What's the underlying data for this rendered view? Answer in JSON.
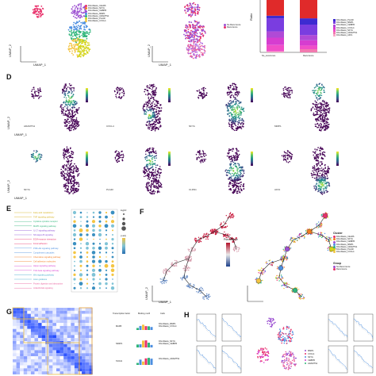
{
  "panels": {
    "D": "D",
    "E": "E",
    "F": "F",
    "G": "G",
    "H": "H"
  },
  "axes": {
    "umap1": "UMAP_1",
    "umap2": "UMAP_2"
  },
  "top_left_legend": [
    {
      "label": "Fibroblasts_CELR6",
      "color": "#e8306a"
    },
    {
      "label": "Fibroblasts_NFYA",
      "color": "#f27a1f"
    },
    {
      "label": "Fibroblasts_CEBPB",
      "color": "#9b4fd1"
    },
    {
      "label": "Fibroblasts_MMP1",
      "color": "#4c8fe0"
    },
    {
      "label": "Fibroblasts_ADAMTS1",
      "color": "#2fb57a"
    },
    {
      "label": "Fibroblasts_PLA4F",
      "color": "#d4d418"
    },
    {
      "label": "Fibroblasts_CXCL4",
      "color": "#f4c542"
    }
  ],
  "top_mid_legend": [
    {
      "label": "No Recurrence",
      "color": "#9b4fd1"
    },
    {
      "label": "Recurrence",
      "color": "#e8306a"
    }
  ],
  "top_right_legend": [
    {
      "label": "Fibroblasts_PLA4F",
      "color": "#3d2bd1"
    },
    {
      "label": "Fibroblasts_MMP1",
      "color": "#7a3de0"
    },
    {
      "label": "Fibroblasts_CEBPB",
      "color": "#b04ad6"
    },
    {
      "label": "Fibroblasts_CXCL4",
      "color": "#d63dd0"
    },
    {
      "label": "Fibroblasts_NFYA",
      "color": "#f04ec8"
    },
    {
      "label": "Fibroblasts_ADAMTS1",
      "color": "#f27ab0"
    },
    {
      "label": "Fibroblasts_AFF1",
      "color": "#f7a8c8"
    }
  ],
  "bar_chart_ylabel": "Ratio",
  "bar_chart_xlabels": [
    "No_recurrence",
    "Recurrence"
  ],
  "genes_row1": [
    "ADAMTS1",
    "CXCL4",
    "NFYA",
    "MMP1"
  ],
  "genes_row2": [
    "NFYA",
    "PLA4F",
    "CLDN1",
    "AFF1"
  ],
  "cbar_label": "Exp",
  "pseudotime_label": "Pseudotime",
  "cluster_title": "Cluster",
  "cluster_legend": [
    {
      "label": "Fibroblasts_CELR6",
      "color": "#e8306a"
    },
    {
      "label": "Fibroblasts_NFYA",
      "color": "#f27a1f"
    },
    {
      "label": "Fibroblasts_CEBPB",
      "color": "#9b4fd1"
    },
    {
      "label": "Fibroblasts_MMP1",
      "color": "#4c8fe0"
    },
    {
      "label": "Fibroblasts_ADAMTS1",
      "color": "#2fb57a"
    },
    {
      "label": "Fibroblasts_PLA4F",
      "color": "#d4d418"
    },
    {
      "label": "Fibroblasts_CXCL4",
      "color": "#f4c542"
    }
  ],
  "group_title": "Group",
  "group_legend": [
    {
      "label": "No Recurrence",
      "color": "#9b4fd1"
    },
    {
      "label": "Recurrence",
      "color": "#e8306a"
    }
  ],
  "g_headers": [
    "Transcription factor",
    "Binding motif",
    "Cells"
  ],
  "g_rows": [
    {
      "tf": "MAFB",
      "cells": [
        "Fibroblasts_MMP1",
        "Fibroblasts_CXCL4"
      ]
    },
    {
      "tf": "NR4P1",
      "cells": [
        "Fibroblasts_NFYA",
        "Fibroblasts_CEBPB"
      ]
    },
    {
      "tf": "TAOd1",
      "cells": [
        "Fibroblasts_ADAMTS1"
      ]
    }
  ],
  "h_legend": [
    "MMP1",
    "CXCL4",
    "NFYA",
    "CEBPB",
    "ADAMTS1"
  ],
  "e_legend_title": "log10",
  "e_colorbar_title": "p.adj",
  "e_terms": [
    "Fatty acid metabolism",
    "TNF signaling pathway",
    "Cytokine-cytokine receptor",
    "MAPK signaling pathway",
    "IL-17 signaling pathway",
    "NF-kappa B signaling",
    "ECM-receptor interaction",
    "Focal adhesion",
    "PI3K-Akt signaling pathway",
    "Complement cascades",
    "Chemokine signaling pathway",
    "Cell adhesion molecules",
    "Hippo signaling pathway",
    "TGF-beta signaling pathway",
    "Wnt signaling pathway",
    "Axon guidance",
    "Protein digestion and absorption",
    "AGE-RAGE signaling"
  ]
}
